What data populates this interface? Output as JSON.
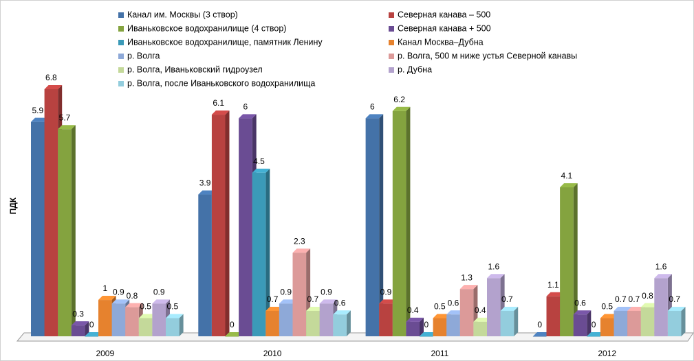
{
  "chart_data": {
    "type": "bar3d",
    "y_label": "ПДК",
    "categories": [
      "2009",
      "2010",
      "2011",
      "2012"
    ],
    "series": [
      {
        "name": "Канал им. Москвы (3 створ)",
        "color": "#4472a8",
        "values": [
          5.9,
          3.9,
          6,
          0
        ]
      },
      {
        "name": "Северная канава – 500",
        "color": "#b84240",
        "values": [
          6.8,
          6.1,
          0.9,
          1.1
        ]
      },
      {
        "name": "Иваньковское водохранилище (4 створ)",
        "color": "#84a33f",
        "values": [
          5.7,
          0,
          6.2,
          4.1
        ]
      },
      {
        "name": "Северная канава + 500",
        "color": "#6a4c93",
        "values": [
          0.3,
          6,
          0.4,
          0.6
        ]
      },
      {
        "name": "Иваньковское водохранилище, памятник Ленину",
        "color": "#3b9ab8",
        "values": [
          0,
          4.5,
          0,
          0
        ]
      },
      {
        "name": "Канал Москва–Дубна",
        "color": "#e6822e",
        "values": [
          1,
          0.7,
          0.5,
          0.5
        ]
      },
      {
        "name": "р. Волга",
        "color": "#8ea9d8",
        "values": [
          0.9,
          0.9,
          0.6,
          0.7
        ]
      },
      {
        "name": "р. Волга, 500 м ниже устья Северной канавы",
        "color": "#dc9a99",
        "values": [
          0.8,
          2.3,
          1.3,
          0.7
        ]
      },
      {
        "name": "р. Волга, Иваньковский гидроузел",
        "color": "#c4d99a",
        "values": [
          0.5,
          0.7,
          0.4,
          0.8
        ]
      },
      {
        "name": "р. Дубна",
        "color": "#b3a2cd",
        "values": [
          0.9,
          0.9,
          1.6,
          1.6
        ]
      },
      {
        "name": "р. Волга, после Иваньковского водохранилища",
        "color": "#93cddd",
        "values": [
          0.5,
          0.6,
          0.7,
          0.7
        ]
      }
    ]
  }
}
